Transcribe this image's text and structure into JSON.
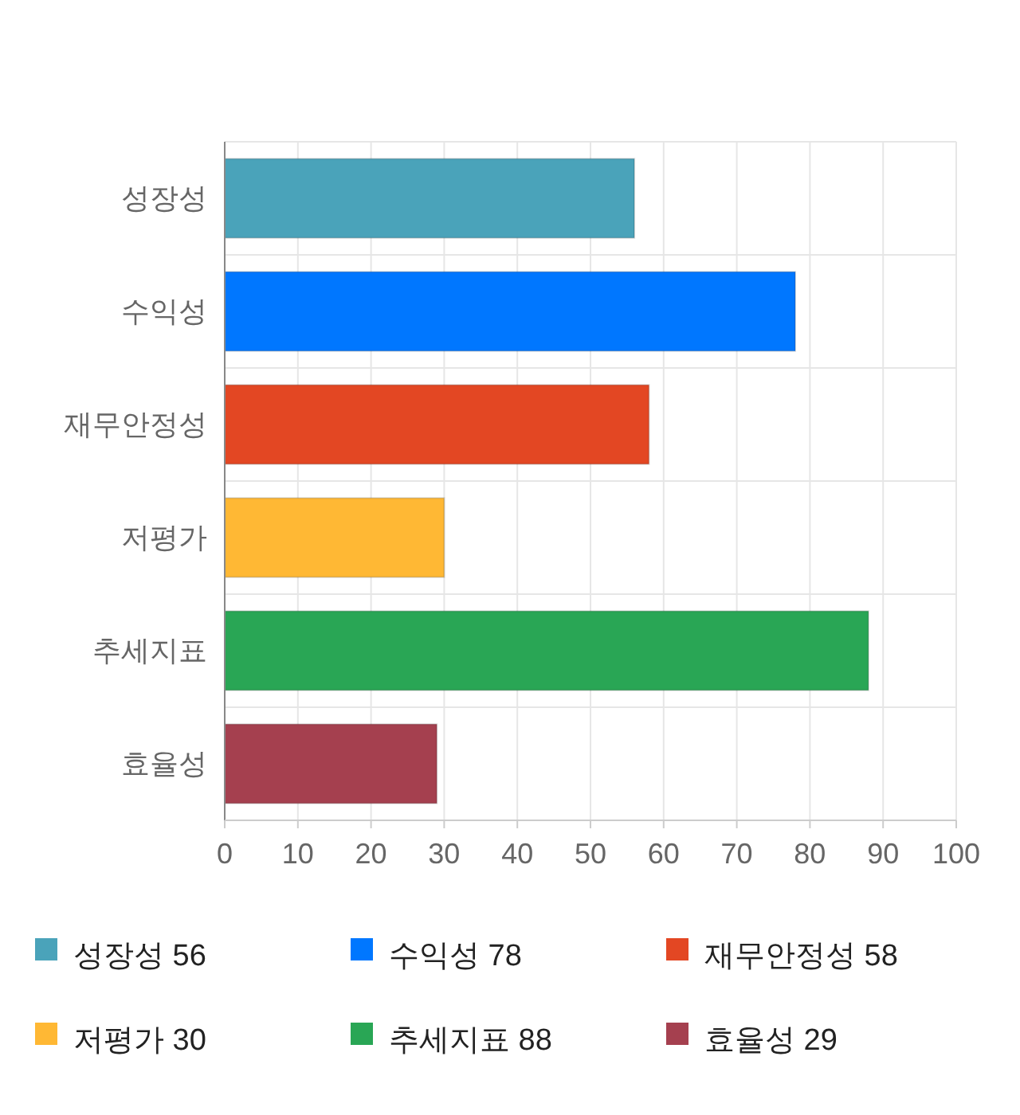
{
  "chart_data": {
    "type": "bar",
    "orientation": "horizontal",
    "categories": [
      "성장성",
      "수익성",
      "재무안정성",
      "저평가",
      "추세지표",
      "효율성"
    ],
    "series": [
      {
        "name": "성장성 56",
        "color": "#4aa3ba",
        "values": [
          56,
          null,
          null,
          null,
          null,
          null
        ]
      },
      {
        "name": "수익성 78",
        "color": "#0077ff",
        "values": [
          null,
          78,
          null,
          null,
          null,
          null
        ]
      },
      {
        "name": "재무안정성 58",
        "color": "#e34723",
        "values": [
          null,
          null,
          58,
          null,
          null,
          null
        ]
      },
      {
        "name": "저평가 30",
        "color": "#ffb834",
        "values": [
          null,
          null,
          null,
          30,
          null,
          null
        ]
      },
      {
        "name": "추세지표 88",
        "color": "#29a655",
        "values": [
          null,
          null,
          null,
          null,
          88,
          null
        ]
      },
      {
        "name": "효율성 29",
        "color": "#a5404f",
        "values": [
          null,
          null,
          null,
          null,
          null,
          29
        ]
      }
    ],
    "xlim": [
      0,
      100
    ],
    "xticks": [
      0,
      10,
      20,
      30,
      40,
      50,
      60,
      70,
      80,
      90,
      100
    ],
    "grid": true,
    "legend": "bottom"
  }
}
